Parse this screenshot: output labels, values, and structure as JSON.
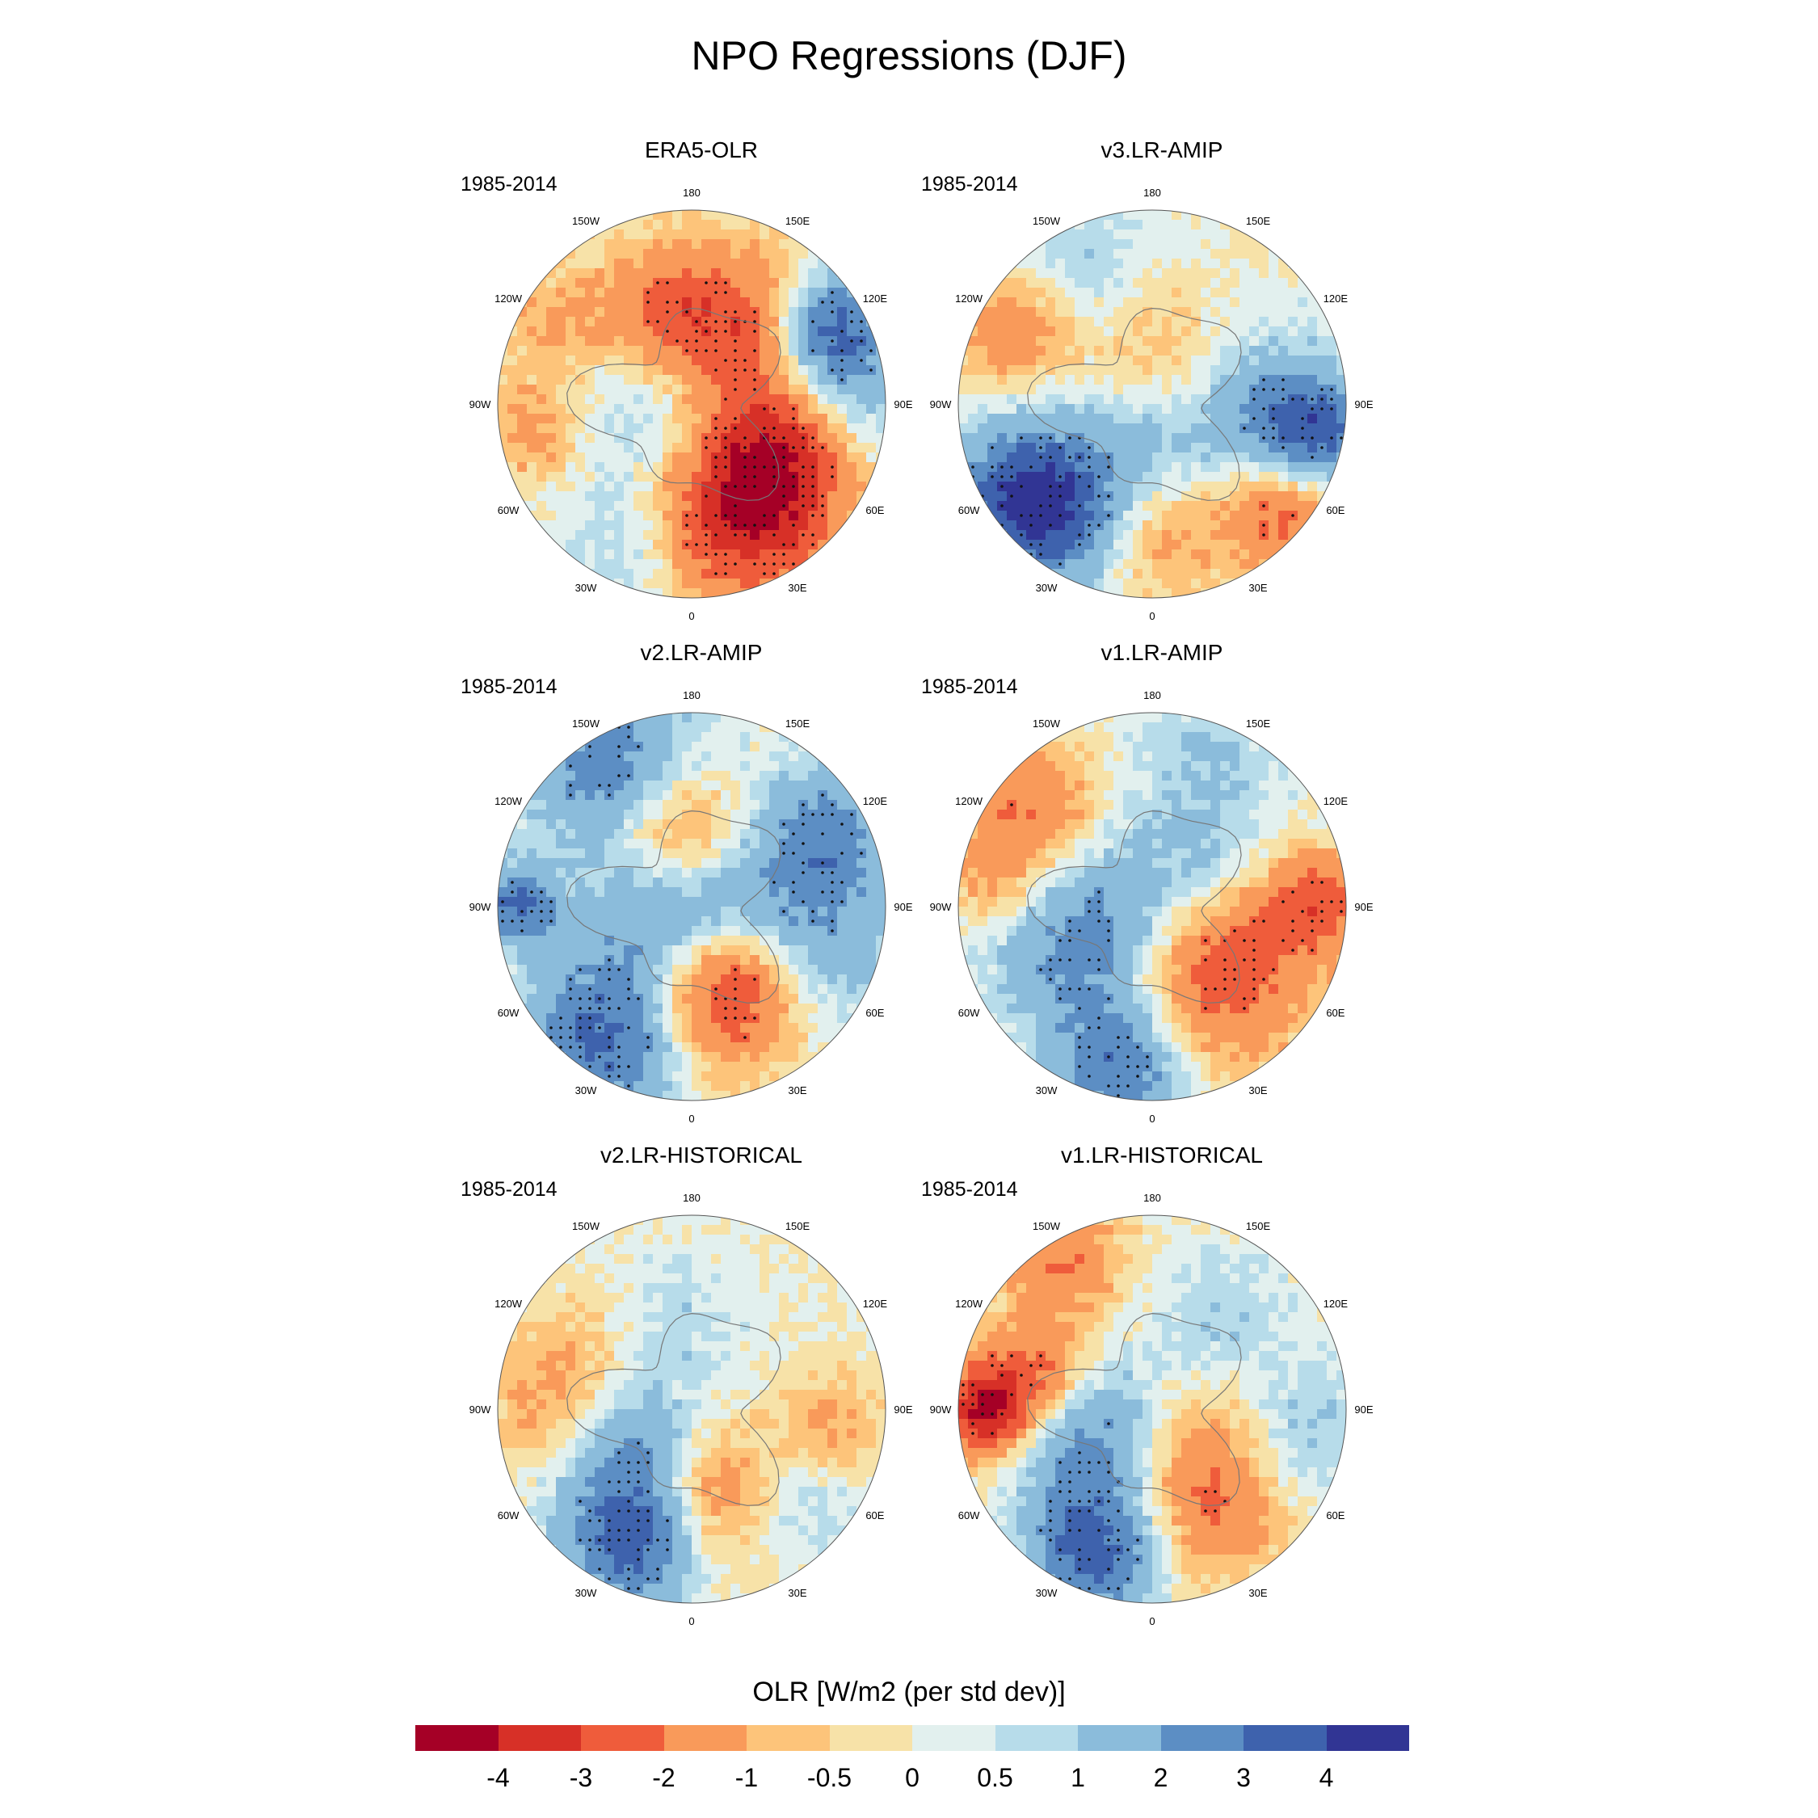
{
  "title": "NPO Regressions (DJF)",
  "panels": [
    {
      "title": "ERA5-OLR",
      "period": "1985-2014",
      "seed": 11,
      "pattern": "era5"
    },
    {
      "title": "v3.LR-AMIP",
      "period": "1985-2014",
      "seed": 23,
      "pattern": "v3amip"
    },
    {
      "title": "v2.LR-AMIP",
      "period": "1985-2014",
      "seed": 37,
      "pattern": "v2amip"
    },
    {
      "title": "v1.LR-AMIP",
      "period": "1985-2014",
      "seed": 41,
      "pattern": "v1amip"
    },
    {
      "title": "v2.LR-HISTORICAL",
      "period": "1985-2014",
      "seed": 53,
      "pattern": "v2hist"
    },
    {
      "title": "v1.LR-HISTORICAL",
      "period": "1985-2014",
      "seed": 67,
      "pattern": "v1hist"
    }
  ],
  "longitude_labels": [
    "180",
    "150E",
    "120E",
    "90E",
    "60E",
    "30E",
    "0",
    "30W",
    "60W",
    "90W",
    "120W",
    "150W"
  ],
  "colorbar": {
    "title": "OLR [W/m2 (per std dev)]",
    "ticks": [
      "-4",
      "-3",
      "-2",
      "-1",
      "-0.5",
      "0",
      "0.5",
      "1",
      "2",
      "3",
      "4"
    ],
    "levels": [
      -4,
      -3,
      -2,
      -1,
      -0.5,
      0,
      0.5,
      1,
      2,
      3,
      4
    ],
    "colors": [
      "#a50026",
      "#d73027",
      "#ef5c3b",
      "#f99a5a",
      "#fdc47a",
      "#f7e2a8",
      "#e2f0ee",
      "#b7dcea",
      "#8bbcdb",
      "#5c8ec4",
      "#3e62ad",
      "#313594"
    ]
  }
}
